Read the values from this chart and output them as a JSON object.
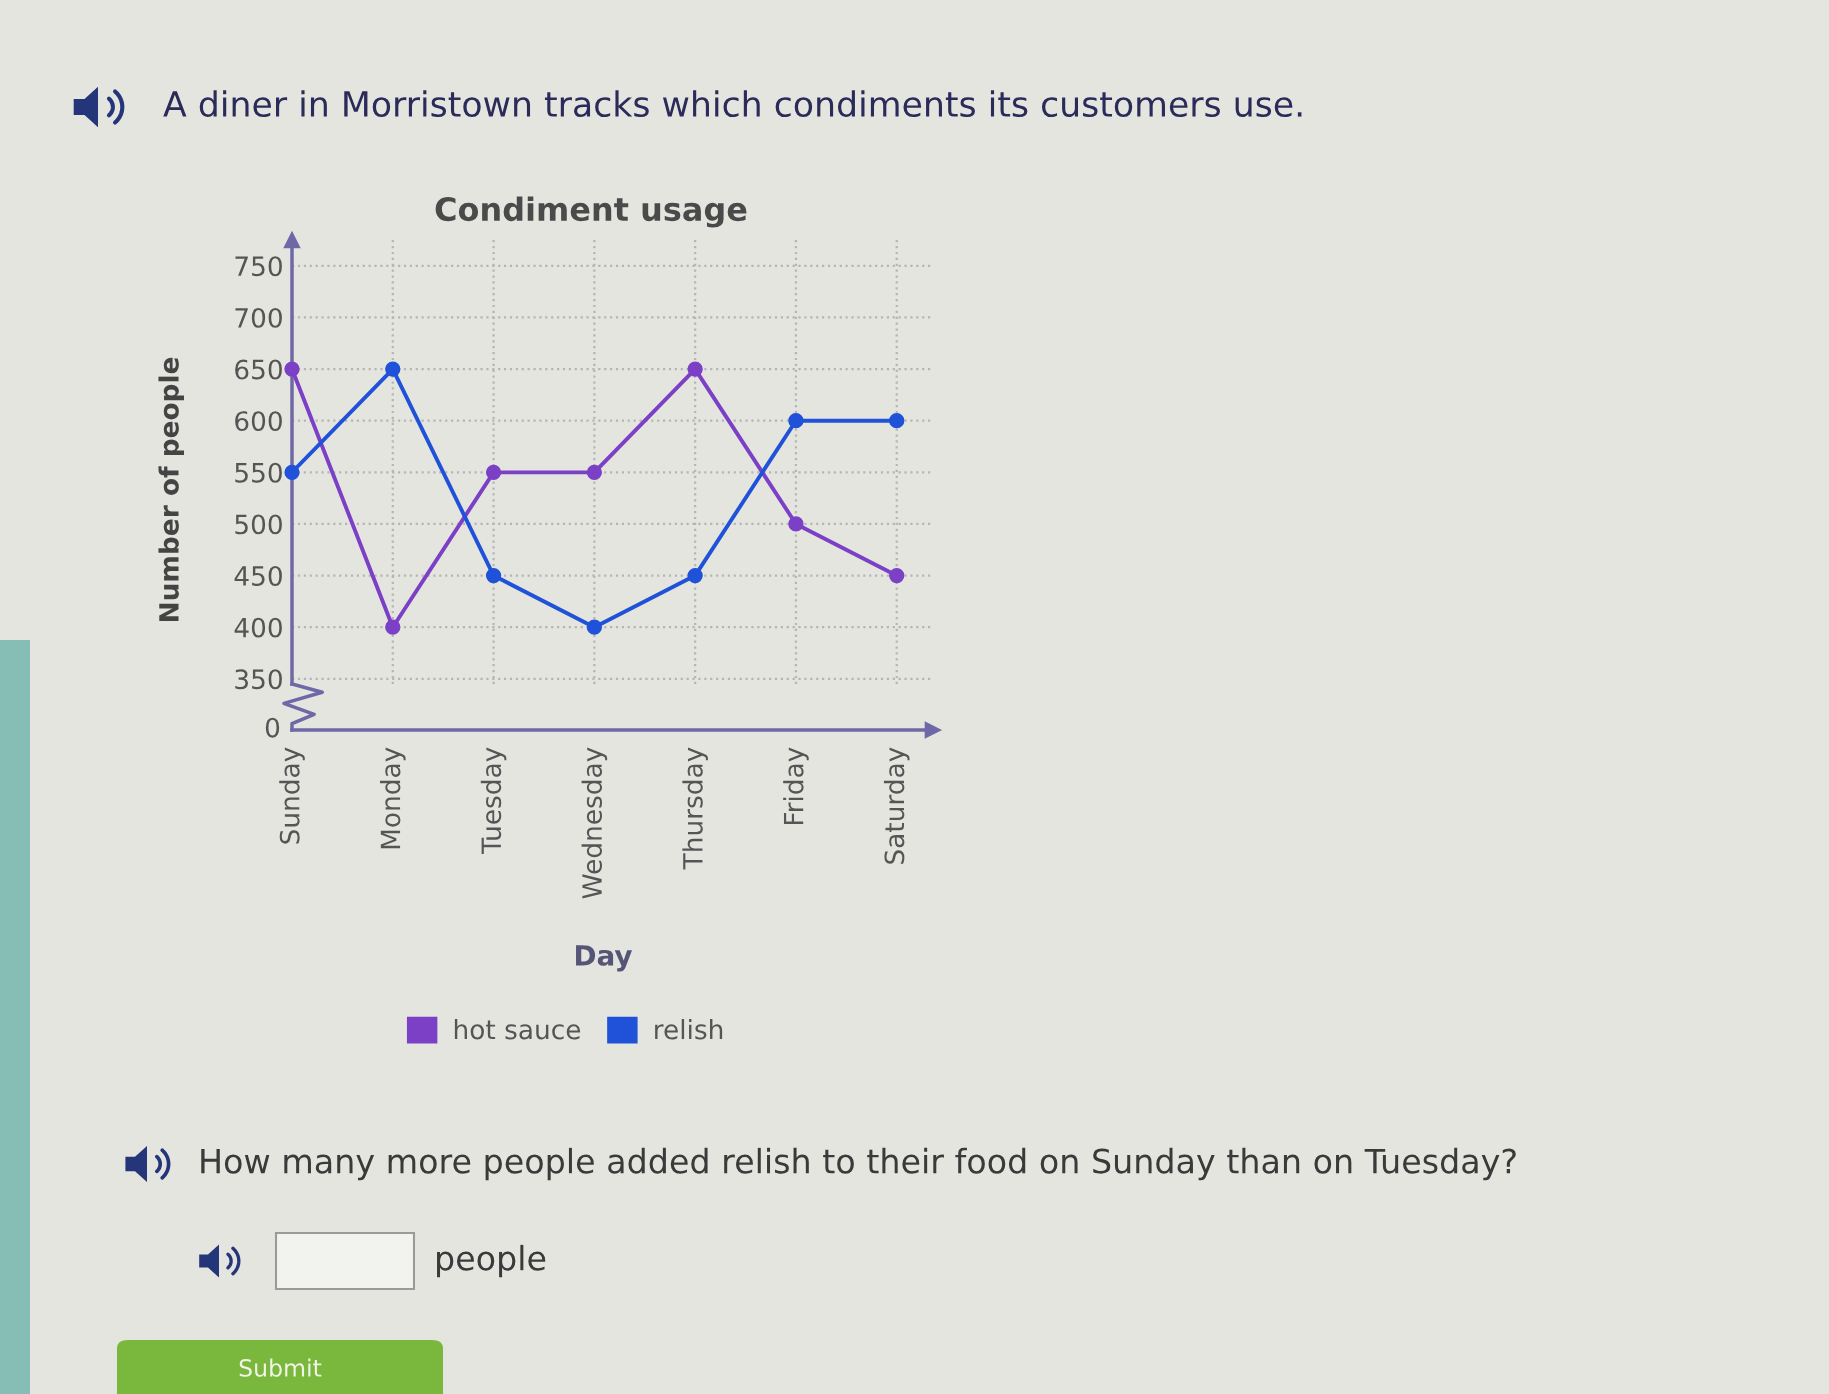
{
  "chart_data": {
    "type": "line",
    "title": "Condiment usage",
    "xlabel": "Day",
    "ylabel": "Number of people",
    "categories": [
      "Sunday",
      "Monday",
      "Tuesday",
      "Wednesday",
      "Thursday",
      "Friday",
      "Saturday"
    ],
    "series": [
      {
        "name": "hot sauce",
        "color": "#7b40c6",
        "values": [
          650,
          400,
          550,
          550,
          650,
          500,
          450
        ]
      },
      {
        "name": "relish",
        "color": "#1f52d8",
        "values": [
          550,
          650,
          450,
          400,
          450,
          600,
          600
        ]
      }
    ],
    "ylim": [
      345,
      775
    ],
    "yticks": [
      350,
      400,
      450,
      500,
      550,
      600,
      650,
      700,
      750
    ],
    "grid": true,
    "legend": "bottom",
    "marker": "circle",
    "line_style": "solid",
    "annotations": [
      "A diner in Morristown tracks which condiments its customers use.",
      "0",
      "How many more people added relish to their food on Sunday than on Tuesday?",
      "people",
      "Submit"
    ]
  }
}
